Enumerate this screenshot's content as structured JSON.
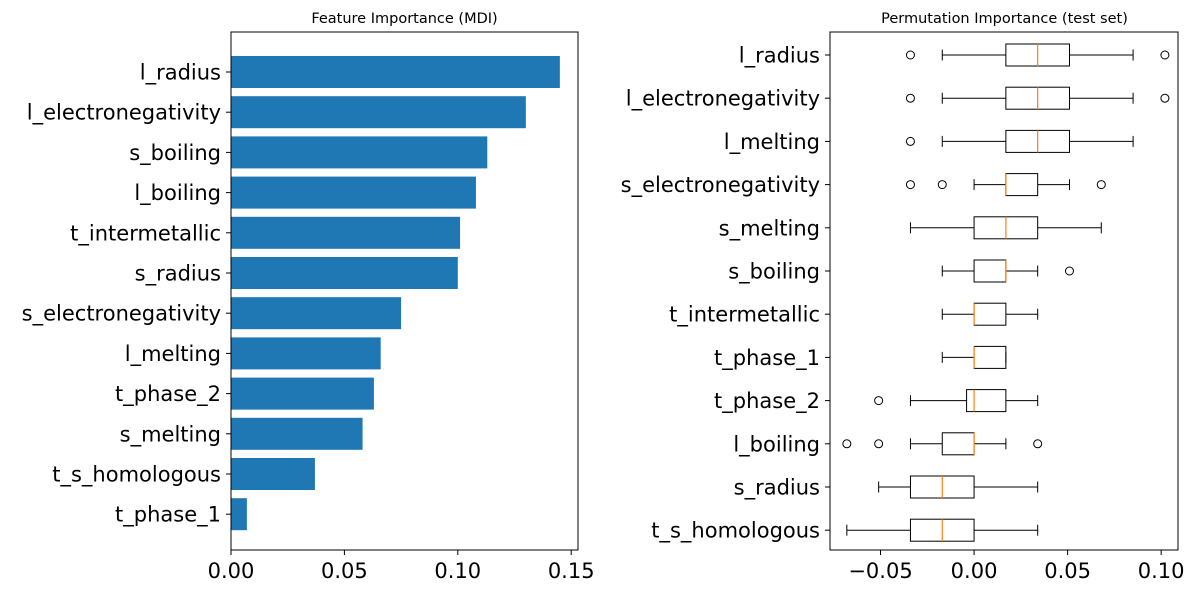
{
  "colors": {
    "bar": "#1f77b4",
    "median": "#ff7f0e",
    "box": "#000000",
    "axes": "#000000"
  },
  "chart_data": [
    {
      "type": "bar",
      "orientation": "horizontal",
      "title": "Feature Importance (MDI)",
      "xlabel": "",
      "ylabel": "",
      "xlim": [
        0,
        0.153
      ],
      "xticks": [
        0.0,
        0.05,
        0.1,
        0.15
      ],
      "xtick_labels": [
        "0.00",
        "0.05",
        "0.10",
        "0.15"
      ],
      "categories": [
        "l_radius",
        "l_electronegativity",
        "s_boiling",
        "l_boiling",
        "t_intermetallic",
        "s_radius",
        "s_electronegativity",
        "l_melting",
        "t_phase_2",
        "s_melting",
        "t_s_homologous",
        "t_phase_1"
      ],
      "values": [
        0.145,
        0.13,
        0.113,
        0.108,
        0.101,
        0.1,
        0.075,
        0.066,
        0.063,
        0.058,
        0.037,
        0.007
      ],
      "grid": false
    },
    {
      "type": "box",
      "orientation": "horizontal",
      "title": "Permutation Importance (test set)",
      "xlabel": "",
      "ylabel": "",
      "xlim": [
        -0.077,
        0.109
      ],
      "xticks": [
        -0.05,
        0.0,
        0.05,
        0.1
      ],
      "xtick_labels": [
        "−0.05",
        "0.00",
        "0.05",
        "0.10"
      ],
      "grid": false,
      "boxes": [
        {
          "label": "l_radius",
          "whislo": -0.017,
          "q1": 0.017,
          "med": 0.034,
          "q3": 0.051,
          "whishi": 0.085,
          "fliers": [
            -0.034,
            0.102
          ]
        },
        {
          "label": "l_electronegativity",
          "whislo": -0.017,
          "q1": 0.017,
          "med": 0.034,
          "q3": 0.051,
          "whishi": 0.085,
          "fliers": [
            -0.034,
            0.102
          ]
        },
        {
          "label": "l_melting",
          "whislo": -0.017,
          "q1": 0.017,
          "med": 0.034,
          "q3": 0.051,
          "whishi": 0.085,
          "fliers": [
            -0.034
          ]
        },
        {
          "label": "s_electronegativity",
          "whislo": 0.0,
          "q1": 0.017,
          "med": 0.017,
          "q3": 0.034,
          "whishi": 0.051,
          "fliers": [
            -0.034,
            -0.017,
            0.068
          ]
        },
        {
          "label": "s_melting",
          "whislo": -0.034,
          "q1": 0.0,
          "med": 0.017,
          "q3": 0.034,
          "whishi": 0.068,
          "fliers": []
        },
        {
          "label": "s_boiling",
          "whislo": -0.017,
          "q1": 0.0,
          "med": 0.017,
          "q3": 0.017,
          "whishi": 0.034,
          "fliers": [
            0.051
          ]
        },
        {
          "label": "t_intermetallic",
          "whislo": -0.017,
          "q1": 0.0,
          "med": 0.0,
          "q3": 0.017,
          "whishi": 0.034,
          "fliers": []
        },
        {
          "label": "t_phase_1",
          "whislo": -0.017,
          "q1": 0.0,
          "med": 0.0,
          "q3": 0.017,
          "whishi": 0.017,
          "fliers": []
        },
        {
          "label": "t_phase_2",
          "whislo": -0.034,
          "q1": -0.004,
          "med": 0.0,
          "q3": 0.017,
          "whishi": 0.034,
          "fliers": [
            -0.051
          ]
        },
        {
          "label": "l_boiling",
          "whislo": -0.034,
          "q1": -0.017,
          "med": 0.0,
          "q3": 0.0,
          "whishi": 0.017,
          "fliers": [
            -0.068,
            -0.051,
            0.034
          ]
        },
        {
          "label": "s_radius",
          "whislo": -0.051,
          "q1": -0.034,
          "med": -0.017,
          "q3": 0.0,
          "whishi": 0.034,
          "fliers": []
        },
        {
          "label": "t_s_homologous",
          "whislo": -0.068,
          "q1": -0.034,
          "med": -0.017,
          "q3": 0.0,
          "whishi": 0.034,
          "fliers": []
        }
      ]
    }
  ]
}
